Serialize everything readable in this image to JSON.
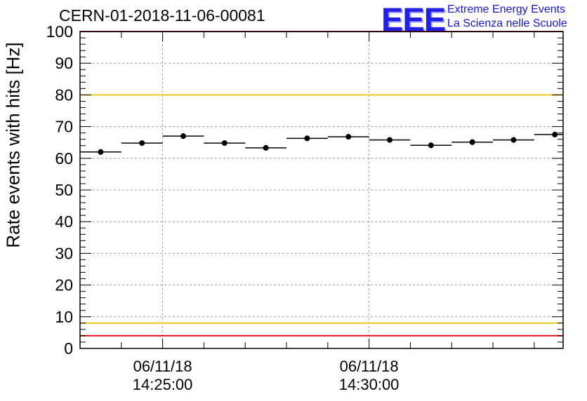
{
  "header": {
    "title": "CERN-01-2018-11-06-00081",
    "logo_text": "EEE",
    "logo_line1": "Extreme Energy Events",
    "logo_line2": "La Scienza nelle Scuole"
  },
  "chart_data": {
    "type": "scatter",
    "ylabel": "Rate events with hits [Hz]",
    "ylim": [
      0,
      100
    ],
    "yticks": [
      0,
      10,
      20,
      30,
      40,
      50,
      60,
      70,
      80,
      90,
      100
    ],
    "xlim_minutes": [
      -2.0,
      9.7
    ],
    "xticks": [
      {
        "date": "06/11/18",
        "time": "14:25:00",
        "minute": 0
      },
      {
        "date": "06/11/18",
        "time": "14:30:00",
        "minute": 5
      }
    ],
    "grid": true,
    "points": [
      {
        "minute": -1.5,
        "value": 62.0
      },
      {
        "minute": -0.5,
        "value": 64.8
      },
      {
        "minute": 0.5,
        "value": 67.0
      },
      {
        "minute": 1.5,
        "value": 64.8
      },
      {
        "minute": 2.5,
        "value": 63.3
      },
      {
        "minute": 3.5,
        "value": 66.3
      },
      {
        "minute": 4.5,
        "value": 66.8
      },
      {
        "minute": 5.5,
        "value": 65.8
      },
      {
        "minute": 6.5,
        "value": 64.1
      },
      {
        "minute": 7.5,
        "value": 65.1
      },
      {
        "minute": 8.5,
        "value": 65.8
      },
      {
        "minute": 9.5,
        "value": 67.5
      }
    ],
    "bin_width_minutes": 1,
    "reference_lines": [
      {
        "value": 100,
        "color": "#e8141c"
      },
      {
        "value": 80,
        "color": "#f0c81c"
      },
      {
        "value": 8,
        "color": "#f0c81c"
      },
      {
        "value": 4,
        "color": "#e8141c"
      }
    ]
  }
}
